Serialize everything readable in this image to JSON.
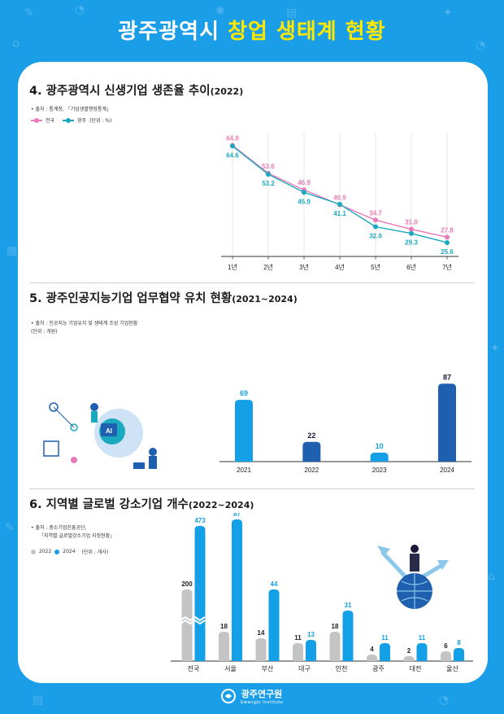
{
  "header": {
    "title_white": "광주광역시",
    "title_yellow": "창업 생태계 현황"
  },
  "colors": {
    "background": "#1b9ee8",
    "accent_yellow": "#ffe800",
    "pink": "#e87bb5",
    "teal": "#1aa9bf",
    "bar_light": "#14a0e6",
    "bar_dark": "#1f5fb0",
    "bar_gray": "#c4c4c4"
  },
  "section4": {
    "title": "4. 광주광역시 신생기업 생존율 추이",
    "title_year": "(2022)",
    "source": "• 출처 : 통계청, 「기업생멸행정통계」",
    "legend_national": "전국",
    "legend_gwangju": "광주",
    "unit": "(단위 : %)"
  },
  "section5": {
    "title": "5. 광주인공지능기업 업무협약 유치 현황",
    "title_year": "(2021~2024)",
    "source": "• 출처 : 인공지능 기업유치 및 생태계 조성 기업현황",
    "unit": "(단위 : 개원)"
  },
  "section6": {
    "title": "6. 지역별 글로벌 강소기업 개수",
    "title_year": "(2022~2024)",
    "source_1": "• 출처 : 중소기업진흥공단,",
    "source_2": "「지역별 글로벌강소기업 지정현황」",
    "legend_2022": "2022",
    "legend_2024": "2024",
    "unit": "(단위 : 개사)"
  },
  "chart_data": [
    {
      "type": "line",
      "x": [
        "1년",
        "2년",
        "3년",
        "4년",
        "5년",
        "6년",
        "7년"
      ],
      "series": [
        {
          "name": "전국",
          "values": [
            64.9,
            53.6,
            46.9,
            40.9,
            34.7,
            31.0,
            27.8
          ]
        },
        {
          "name": "광주",
          "values": [
            64.6,
            53.2,
            45.9,
            41.1,
            32.0,
            29.3,
            25.6
          ]
        }
      ],
      "ylim": [
        20,
        70
      ]
    },
    {
      "type": "bar",
      "categories": [
        "2021",
        "2022",
        "2023",
        "2024"
      ],
      "values": [
        69,
        22,
        10,
        87
      ],
      "ylim": [
        0,
        100
      ]
    },
    {
      "type": "bar",
      "categories": [
        "전국",
        "서울",
        "부산",
        "대구",
        "인천",
        "광주",
        "대전",
        "울산"
      ],
      "series": [
        {
          "name": "2022",
          "values": [
            200,
            18,
            14,
            11,
            18,
            4,
            2,
            6
          ]
        },
        {
          "name": "2024",
          "values": [
            473,
            87,
            44,
            13,
            31,
            11,
            11,
            8
          ]
        }
      ]
    }
  ],
  "footer": {
    "logo_text": "광주연구원",
    "logo_sub": "GwangJu Institute"
  }
}
